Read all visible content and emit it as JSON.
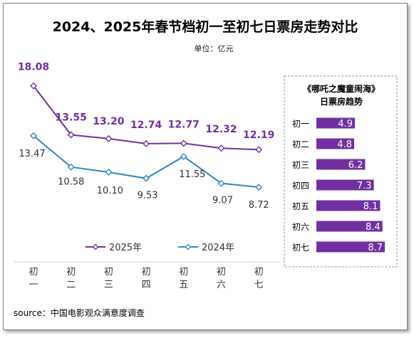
{
  "chart_data": [
    {
      "type": "line",
      "title": "2024、2025年春节档初一至初七日票房走势对比",
      "unit": "单位：亿元",
      "categories": [
        "初一",
        "初二",
        "初三",
        "初四",
        "初五",
        "初六",
        "初七"
      ],
      "series": [
        {
          "name": "2025年",
          "values": [
            18.08,
            13.55,
            13.2,
            12.74,
            12.77,
            12.32,
            12.19
          ],
          "color": "#7030a0"
        },
        {
          "name": "2024年",
          "values": [
            13.47,
            10.58,
            10.1,
            9.53,
            11.55,
            9.07,
            8.72
          ],
          "color": "#2e88c4"
        }
      ],
      "legend_position": "bottom",
      "source": "source：中国电影观众满意度调查"
    },
    {
      "type": "bar",
      "orientation": "horizontal",
      "title": "《哪吒之魔童闹海》",
      "subtitle": "日票房趋势",
      "categories": [
        "初一",
        "初二",
        "初三",
        "初四",
        "初五",
        "初六",
        "初七"
      ],
      "values": [
        4.9,
        4.8,
        6.2,
        7.3,
        8.1,
        8.4,
        8.7
      ],
      "color": "#7030a0"
    }
  ]
}
